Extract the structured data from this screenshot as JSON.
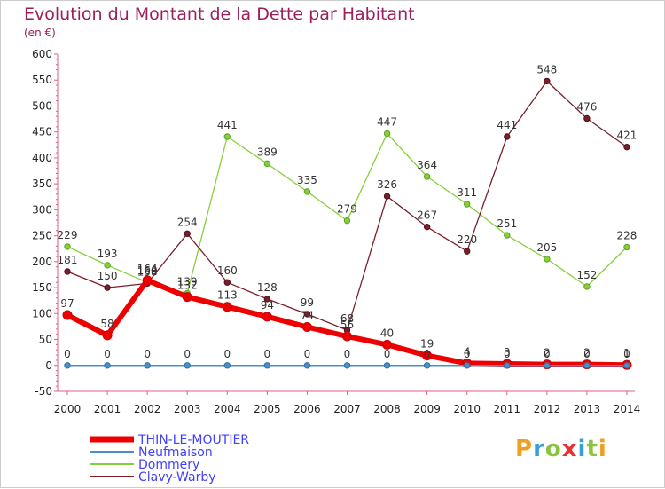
{
  "header": {
    "title": "Evolution du Montant de la Dette par Habitant",
    "unit": "(en €)"
  },
  "logo": {
    "text": "Proxiti",
    "colors": [
      "#f0a020",
      "#3a9fd8",
      "#8ac43f",
      "#e8312f",
      "#3a9fd8",
      "#8ac43f",
      "#f0a020"
    ]
  },
  "chart_data": {
    "type": "line",
    "x": [
      2000,
      2001,
      2002,
      2003,
      2004,
      2005,
      2006,
      2007,
      2008,
      2009,
      2010,
      2011,
      2012,
      2013,
      2014
    ],
    "ylim": [
      -50,
      600
    ],
    "yticks": [
      -50,
      0,
      50,
      100,
      150,
      200,
      250,
      300,
      350,
      400,
      450,
      500,
      550,
      600
    ],
    "grid": false,
    "legend_position": "bottom-left",
    "series": [
      {
        "name": "THIN-LE-MOUTIER",
        "color": "#ee0000",
        "values": [
          97,
          58,
          164,
          132,
          113,
          94,
          74,
          56,
          40,
          19,
          4,
          3,
          2,
          2,
          1
        ]
      },
      {
        "name": "Neufmaison",
        "color": "#4a8fc8",
        "values": [
          0,
          0,
          0,
          0,
          0,
          0,
          0,
          0,
          0,
          0,
          0,
          0,
          0,
          0,
          0
        ]
      },
      {
        "name": "Dommery",
        "color": "#86d13a",
        "values": [
          229,
          193,
          160,
          139,
          441,
          389,
          335,
          279,
          447,
          364,
          311,
          251,
          205,
          152,
          228
        ]
      },
      {
        "name": "Clavy-Warby",
        "color": "#7a1f2b",
        "values": [
          181,
          150,
          158,
          254,
          160,
          128,
          99,
          68,
          326,
          267,
          220,
          441,
          548,
          476,
          421
        ]
      }
    ]
  }
}
